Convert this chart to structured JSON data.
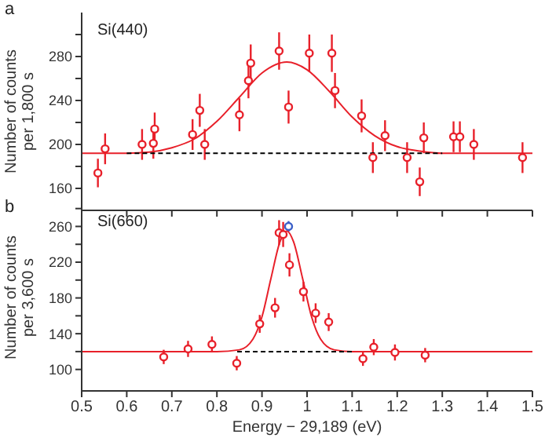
{
  "chart_data": [
    {
      "type": "scatter",
      "annotations": [
        "a",
        "Si(440)"
      ],
      "ylabel": "Number of counts\nper 1,800 s",
      "marker": "circle",
      "tick_labels": "y",
      "xlim": [
        0.5,
        1.5
      ],
      "xticks": [
        0.5,
        0.6,
        0.7,
        0.8,
        0.9,
        1.0,
        1.1,
        1.2,
        1.3,
        1.4,
        1.5
      ],
      "ylim": [
        140,
        320
      ],
      "yticks": [
        160,
        {
          "value": 180,
          "label": null
        },
        200,
        {
          "value": 220,
          "label": null
        },
        240,
        {
          "value": 260,
          "label": null
        },
        280,
        {
          "value": 300,
          "label": null
        }
      ],
      "series": [
        {
          "color": "#e8202a",
          "x": [
            0.536,
            0.552,
            0.634,
            0.659,
            0.662,
            0.746,
            0.762,
            0.773,
            0.85,
            0.87,
            0.875,
            0.938,
            0.959,
            1.005,
            1.055,
            1.062,
            1.121,
            1.146,
            1.173,
            1.222,
            1.25,
            1.259,
            1.325,
            1.339,
            1.37,
            1.478
          ],
          "values": [
            174,
            196,
            200,
            201,
            214,
            209,
            231,
            200,
            227,
            258,
            274,
            285,
            234,
            283,
            283,
            249,
            226,
            188,
            208,
            188,
            166,
            206,
            207,
            207,
            200,
            188
          ],
          "errors": [
            13,
            14,
            14,
            14,
            15,
            14,
            15,
            14,
            15,
            16,
            17,
            17,
            15,
            17,
            17,
            16,
            15,
            14,
            14,
            14,
            13,
            14,
            14,
            14,
            14,
            14
          ]
        },
        {
          "type": "line",
          "marker": "none",
          "color": "#e8202a",
          "line_style": "solid",
          "x": [
            0.5,
            0.6,
            0.65,
            0.7,
            0.75,
            0.8,
            0.85,
            0.9,
            0.955,
            1.0,
            1.05,
            1.1,
            1.15,
            1.2,
            1.25,
            1.3,
            1.5
          ],
          "values": [
            192,
            192,
            193,
            197,
            205,
            221,
            243,
            265,
            275,
            268,
            248,
            225,
            208,
            198,
            194,
            192,
            192
          ]
        },
        {
          "type": "line",
          "marker": "none",
          "color": "#000000",
          "line_style": "dashed",
          "x": [
            0.6,
            1.3
          ],
          "values": [
            192,
            192
          ]
        }
      ]
    },
    {
      "type": "scatter",
      "annotations": [
        "b",
        "Si(660)"
      ],
      "ylabel": "Number of counts\nper 3,600 s",
      "xlabel": "Energy − 29,189 (eV)",
      "marker": "circle",
      "xlim": [
        0.5,
        1.5
      ],
      "xticks": [
        0.5,
        0.6,
        0.7,
        0.8,
        0.9,
        1.0,
        1.1,
        1.2,
        1.3,
        1.4,
        1.5
      ],
      "ylim": [
        76,
        285
      ],
      "yticks": [
        100,
        {
          "value": 120,
          "label": null
        },
        140,
        {
          "value": 160,
          "label": null
        },
        180,
        {
          "value": 200,
          "label": null
        },
        220,
        {
          "value": 240,
          "label": null
        },
        260,
        {
          "value": 280,
          "label": null
        }
      ],
      "series": [
        {
          "color": "#e8202a",
          "x": [
            0.682,
            0.736,
            0.789,
            0.844,
            0.895,
            0.929,
            0.938,
            0.947,
            0.961,
            0.992,
            1.019,
            1.048,
            1.124,
            1.148,
            1.195,
            1.262
          ],
          "values": [
            114,
            123,
            128,
            107,
            151,
            169,
            253,
            251,
            217,
            187,
            163,
            153,
            112,
            125,
            119,
            116
          ],
          "errors": [
            8,
            9,
            9,
            8,
            10,
            11,
            14,
            14,
            13,
            11,
            11,
            10,
            8,
            9,
            9,
            8
          ]
        },
        {
          "color": "#3a5fc8",
          "x": [
            0.959
          ],
          "values": [
            260
          ],
          "errors": [
            6
          ]
        },
        {
          "type": "line",
          "marker": "none",
          "color": "#e8202a",
          "line_style": "solid",
          "x": [
            0.5,
            0.8,
            0.85,
            0.88,
            0.9,
            0.92,
            0.94,
            0.955,
            0.97,
            0.99,
            1.01,
            1.03,
            1.06,
            1.1,
            1.5
          ],
          "values": [
            120,
            120,
            122,
            134,
            159,
            202,
            243,
            255,
            243,
            202,
            159,
            134,
            122,
            120,
            120
          ]
        },
        {
          "type": "line",
          "marker": "none",
          "color": "#000000",
          "line_style": "dashed",
          "x": [
            0.845,
            1.1
          ],
          "values": [
            120,
            120
          ]
        }
      ]
    }
  ]
}
